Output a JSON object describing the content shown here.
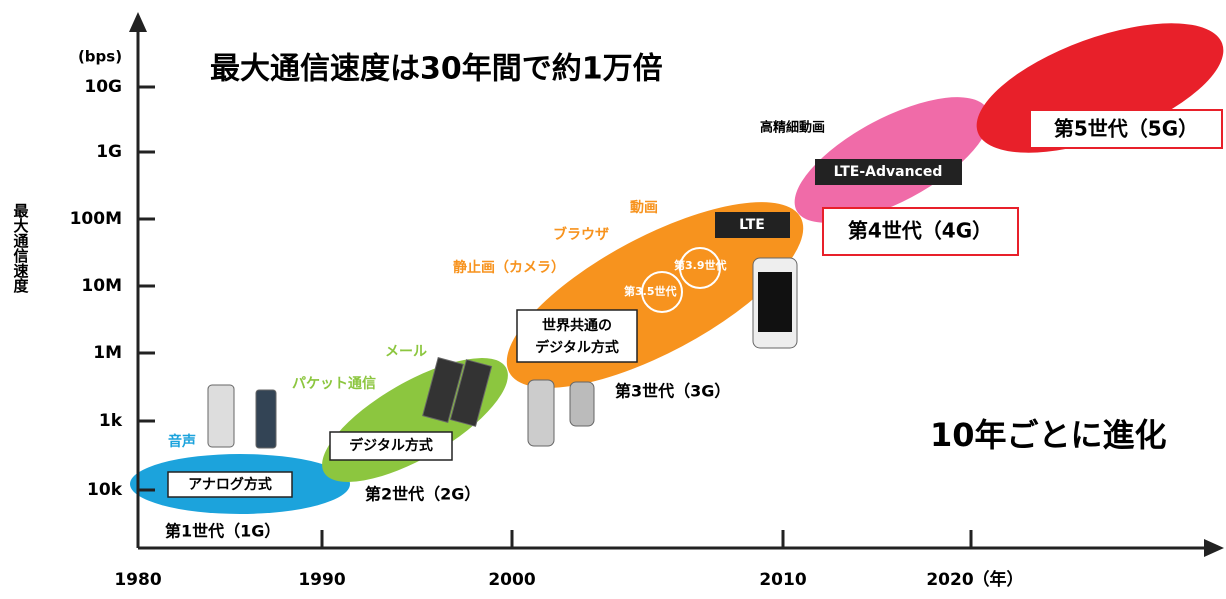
{
  "title": "最大通信速度は30年間で約1万倍",
  "y_axis": {
    "unit": "(bps)",
    "label": "最大通信速度",
    "ticks": [
      "10G",
      "1G",
      "100M",
      "10M",
      "1M",
      "1k",
      "10k"
    ]
  },
  "x_axis": {
    "ticks": [
      "1980",
      "1990",
      "2000",
      "2010",
      "2020"
    ],
    "unit": "（年）"
  },
  "generations": [
    {
      "name": "第1世代（1G）",
      "method": "アナログ方式",
      "features": [
        "音声"
      ]
    },
    {
      "name": "第2世代（2G）",
      "method": "デジタル方式",
      "features": [
        "パケット通信",
        "メール"
      ]
    },
    {
      "name": "第3世代（3G）",
      "method": [
        "世界共通の",
        "デジタル方式"
      ],
      "features": [
        "静止画（カメラ）",
        "ブラウザ",
        "動画"
      ],
      "sub": [
        "第3.5世代",
        "第3.9世代"
      ]
    },
    {
      "name": "第4世代（4G）",
      "method": [
        "LTE",
        "LTE-Advanced"
      ],
      "features": [
        "高精細動画"
      ]
    },
    {
      "name": "第5世代（5G）"
    }
  ],
  "note": "10年ごとに進化"
}
